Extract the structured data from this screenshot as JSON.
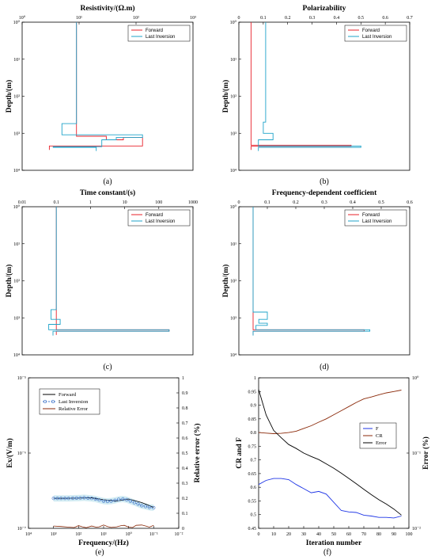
{
  "colors": {
    "forward": "#e8202a",
    "inversion": "#1fa3c9",
    "black": "#000000",
    "brown": "#8b2a0a",
    "blue": "#1f36e6",
    "circle": "#3f74c9",
    "circle_fill": "#d7e9f7",
    "error_brown": "#8b2a0a",
    "band": "#d3ecf3"
  },
  "chart_data": [
    {
      "panel": "(a)",
      "type": "line",
      "title": "Resistivity/(Ω.m)",
      "ylabel": "Depth/(m)",
      "xscale": "log",
      "xlim": [
        1,
        1000
      ],
      "yscale": "log",
      "ylim": [
        1,
        10000
      ],
      "yinverted": true,
      "xticks": [
        "10⁰",
        "10¹",
        "10²",
        "10³"
      ],
      "yticks": [
        "10⁰",
        "10¹",
        "10²",
        "10³",
        "10⁴"
      ],
      "legend": [
        "Forward",
        "Last Inversion"
      ],
      "series": [
        {
          "name": "Forward",
          "color": "forward",
          "x": [
            9,
            9,
            30,
            30,
            60,
            60,
            130,
            130,
            3,
            3
          ],
          "y": [
            1,
            1200,
            1200,
            1500,
            1500,
            1300,
            1300,
            2200,
            2200,
            2800
          ]
        },
        {
          "name": "Last Inversion",
          "color": "inversion",
          "x": [
            9,
            9,
            5,
            5,
            130,
            130,
            45,
            45,
            25,
            25,
            3.5,
            3.5,
            20,
            20
          ],
          "y": [
            1,
            550,
            550,
            1100,
            1100,
            1300,
            1300,
            1500,
            1500,
            2300,
            2300,
            2400,
            2400,
            3000
          ]
        }
      ]
    },
    {
      "panel": "(b)",
      "type": "line",
      "title": "Polarizability",
      "ylabel": "Depth/(m)",
      "xscale": "linear",
      "xlim": [
        0,
        0.7
      ],
      "yscale": "log",
      "ylim": [
        1,
        10000
      ],
      "yinverted": true,
      "xticks": [
        "0",
        "0.1",
        "0.2",
        "0.3",
        "0.4",
        "0.5",
        "0.6",
        "0.7"
      ],
      "yticks": [
        "10⁰",
        "10¹",
        "10²",
        "10³",
        "10⁴"
      ],
      "legend": [
        "Forward",
        "Last Inversion"
      ],
      "series": [
        {
          "name": "Forward",
          "color": "forward",
          "x": [
            0.05,
            0.05,
            0.46,
            0.46,
            0.05,
            0.05
          ],
          "y": [
            1,
            2100,
            2100,
            2250,
            2250,
            2800
          ]
        },
        {
          "name": "Last Inversion",
          "color": "inversion",
          "x": [
            0.11,
            0.11,
            0.1,
            0.1,
            0.14,
            0.14,
            0.08,
            0.08,
            0.5,
            0.5,
            0.08,
            0.08
          ],
          "y": [
            1,
            500,
            500,
            1000,
            1000,
            1500,
            1500,
            2200,
            2200,
            2400,
            2400,
            3000
          ]
        }
      ]
    },
    {
      "panel": "(c)",
      "type": "line",
      "title": "Time constant/(s)",
      "ylabel": "Depth/(m)",
      "xscale": "log",
      "xlim": [
        0.01,
        1000
      ],
      "yscale": "log",
      "ylim": [
        1,
        10000
      ],
      "yinverted": true,
      "xticks": [
        "0.01",
        "0.1",
        "1",
        "10",
        "100",
        "1000"
      ],
      "yticks": [
        "10⁰",
        "10¹",
        "10²",
        "10³",
        "10⁴"
      ],
      "legend": [
        "Forward",
        "Last Inversion"
      ],
      "series": [
        {
          "name": "Forward",
          "color": "forward",
          "x": [
            0.1,
            0.1,
            200,
            200,
            0.1,
            0.1
          ],
          "y": [
            1,
            2100,
            2100,
            2300,
            2300,
            2900
          ]
        },
        {
          "name": "Last Inversion",
          "color": "inversion",
          "x": [
            0.1,
            0.1,
            0.07,
            0.07,
            0.13,
            0.13,
            0.06,
            0.06,
            200,
            200,
            0.08,
            0.08
          ],
          "y": [
            1,
            600,
            600,
            1100,
            1100,
            1500,
            1500,
            2100,
            2100,
            2300,
            2300,
            3000
          ]
        }
      ]
    },
    {
      "panel": "(d)",
      "type": "line",
      "title": "Frequency-dependent coefficient",
      "ylabel": "Depth/(m)",
      "xscale": "linear",
      "xlim": [
        0,
        0.6
      ],
      "yscale": "log",
      "ylim": [
        1,
        10000
      ],
      "yinverted": true,
      "xticks": [
        "0",
        "0.1",
        "0.2",
        "0.3",
        "0.4",
        "0.5",
        "0.6"
      ],
      "yticks": [
        "10⁰",
        "10¹",
        "10²",
        "10³",
        "10⁴"
      ],
      "legend": [
        "Forward",
        "Last Inversion"
      ],
      "series": [
        {
          "name": "Forward",
          "color": "forward",
          "x": [
            0.05,
            0.05,
            0.44,
            0.44,
            0.05,
            0.05
          ],
          "y": [
            1,
            2100,
            2100,
            2300,
            2300,
            2900
          ]
        },
        {
          "name": "Last Inversion",
          "color": "inversion",
          "x": [
            0.05,
            0.05,
            0.1,
            0.1,
            0.07,
            0.07,
            0.1,
            0.1,
            0.06,
            0.06,
            0.46,
            0.46,
            0.05,
            0.05
          ],
          "y": [
            1,
            700,
            700,
            1100,
            1100,
            1400,
            1400,
            1600,
            1600,
            2100,
            2100,
            2300,
            2300,
            3000
          ]
        }
      ]
    },
    {
      "panel": "(e)",
      "type": "line",
      "xlabel": "Frequency/(Hz)",
      "ylabel": "Ex/(V/m)",
      "ylabel2": "Relative error (%)",
      "xscale": "log",
      "xlim": [
        10000,
        0.01
      ],
      "xinverted": true,
      "yscale": "log",
      "ylim": [
        1e-07,
        1e-05
      ],
      "y2lim": [
        0,
        1
      ],
      "xticks": [
        "10⁴",
        "10³",
        "10²",
        "10¹",
        "10⁰",
        "10⁻¹",
        "10⁻²"
      ],
      "yticks": [
        "10⁻⁷",
        "10⁻⁶",
        "10⁻⁵"
      ],
      "y2ticks": [
        "0",
        "0.1",
        "0.2",
        "0.3",
        "0.4",
        "0.5",
        "0.6",
        "0.7",
        "0.8",
        "0.9",
        "1"
      ],
      "legend": [
        "Forward",
        "Last Inversion",
        "Relative Error"
      ],
      "series": [
        {
          "name": "Forward",
          "color": "black",
          "x": [
            1000,
            300,
            100,
            30,
            10,
            3,
            1,
            0.3,
            0.1
          ],
          "y": [
            2.5e-07,
            2.5e-07,
            2.52e-07,
            2.55e-07,
            2.4e-07,
            2.3e-07,
            2.45e-07,
            2.2e-07,
            1.9e-07
          ]
        },
        {
          "name": "Last Inversion",
          "color": "circle",
          "x": [
            1000,
            700,
            500,
            350,
            250,
            170,
            120,
            85,
            60,
            42,
            30,
            21,
            15,
            10,
            7,
            5,
            3.5,
            2.5,
            1.7,
            1.2,
            0.85,
            0.6,
            0.42,
            0.3,
            0.21,
            0.15,
            0.1
          ],
          "y": [
            2.5e-07,
            2.5e-07,
            2.5e-07,
            2.5e-07,
            2.5e-07,
            2.51e-07,
            2.52e-07,
            2.53e-07,
            2.55e-07,
            2.52e-07,
            2.5e-07,
            2.45e-07,
            2.38e-07,
            2.3e-07,
            2.28e-07,
            2.3e-07,
            2.35e-07,
            2.42e-07,
            2.45e-07,
            2.4e-07,
            2.3e-07,
            2.2e-07,
            2.1e-07,
            2e-07,
            1.95e-07,
            1.9e-07,
            1.88e-07
          ]
        },
        {
          "name": "Relative Error",
          "color": "error_brown",
          "axis": "y2",
          "x": [
            1000,
            500,
            250,
            150,
            100,
            70,
            50,
            30,
            20,
            15,
            10,
            7,
            5,
            3,
            2,
            1.5,
            1,
            0.7,
            0.5,
            0.3,
            0.2,
            0.15,
            0.1
          ],
          "y": [
            0.015,
            0.012,
            0.008,
            0.005,
            0.018,
            0.01,
            0.004,
            0.015,
            0.008,
            0.01,
            0.022,
            0.012,
            0.006,
            0.01,
            0.018,
            0.02,
            0.008,
            0.005,
            0.02,
            0.022,
            0.014,
            0.008,
            0.02
          ]
        }
      ]
    },
    {
      "panel": "(f)",
      "type": "line",
      "xlabel": "Iteration number",
      "ylabel": "CR and F",
      "ylabel2": "Error (%)",
      "xlim": [
        0,
        100
      ],
      "ylim": [
        0.45,
        1
      ],
      "y2scale": "log",
      "y2lim": [
        0.01,
        1
      ],
      "xticks": [
        "0",
        "10",
        "20",
        "30",
        "40",
        "50",
        "60",
        "70",
        "80",
        "90",
        "100"
      ],
      "yticks": [
        "0.45",
        "0.5",
        "0.55",
        "0.6",
        "0.65",
        "0.7",
        "0.75",
        "0.8",
        "0.85",
        "0.9",
        "0.95",
        "1"
      ],
      "y2ticks": [
        "10⁻²",
        "10⁻¹",
        "10⁰"
      ],
      "legend": [
        "F",
        "CR",
        "Error"
      ],
      "series": [
        {
          "name": "F",
          "color": "blue",
          "x": [
            0,
            5,
            10,
            15,
            20,
            25,
            30,
            35,
            40,
            45,
            50,
            55,
            60,
            65,
            70,
            75,
            80,
            85,
            90,
            95
          ],
          "y": [
            0.61,
            0.625,
            0.632,
            0.632,
            0.628,
            0.61,
            0.595,
            0.58,
            0.585,
            0.575,
            0.545,
            0.515,
            0.51,
            0.508,
            0.498,
            0.495,
            0.49,
            0.49,
            0.488,
            0.495
          ]
        },
        {
          "name": "CR",
          "color": "brown",
          "x": [
            0,
            5,
            10,
            15,
            20,
            25,
            30,
            35,
            40,
            45,
            50,
            55,
            60,
            65,
            70,
            75,
            80,
            85,
            90,
            95
          ],
          "y": [
            0.8,
            0.798,
            0.796,
            0.797,
            0.8,
            0.805,
            0.815,
            0.825,
            0.838,
            0.85,
            0.865,
            0.88,
            0.895,
            0.91,
            0.923,
            0.93,
            0.938,
            0.945,
            0.95,
            0.955
          ]
        },
        {
          "name": "Error",
          "color": "black",
          "axis": "y2",
          "x": [
            0,
            5,
            10,
            15,
            20,
            25,
            30,
            35,
            40,
            45,
            50,
            55,
            60,
            65,
            70,
            75,
            80,
            85,
            90,
            95
          ],
          "y": [
            0.7,
            0.32,
            0.2,
            0.16,
            0.13,
            0.115,
            0.1,
            0.09,
            0.082,
            0.072,
            0.063,
            0.054,
            0.046,
            0.039,
            0.033,
            0.028,
            0.024,
            0.021,
            0.018,
            0.015
          ]
        }
      ]
    }
  ]
}
